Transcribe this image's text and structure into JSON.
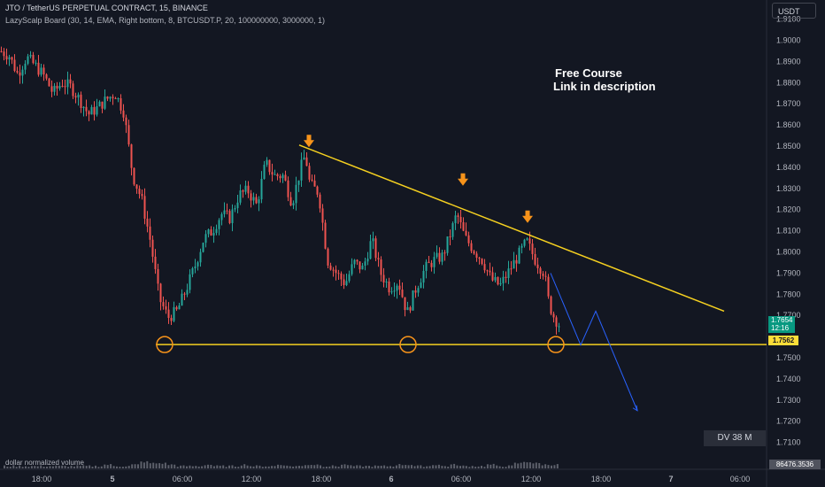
{
  "header": {
    "symbol_line": "JTO / TetherUS PERPETUAL CONTRACT, 15, BINANCE",
    "indicator_line": "LazyScalp Board (30, 14, EMA, Right bottom, 8, BTCUSDT.P, 20, 100000000, 3000000, 1)"
  },
  "currency": "USDT",
  "annotations": {
    "line1": "Free Course",
    "line2": "Link in description"
  },
  "dv_label": "DV 38 M",
  "volume_label": "dollar normalized volume",
  "volume_value": "86476.3536",
  "price_box": {
    "price": "1.7654",
    "countdown": "12:16"
  },
  "level_box": "1.7562",
  "colors": {
    "up": "#26a69a",
    "down": "#ef5350",
    "trendline": "#f5d020",
    "support": "#f5d020",
    "markers": "#f7931a",
    "projection": "#2962ff",
    "background": "#131722"
  },
  "chart_data": {
    "type": "candlestick",
    "y_ticks": [
      "1.9100",
      "1.9000",
      "1.8900",
      "1.8800",
      "1.8700",
      "1.8600",
      "1.8500",
      "1.8400",
      "1.8300",
      "1.8200",
      "1.8100",
      "1.8000",
      "1.7900",
      "1.7800",
      "1.7700",
      "1.7500",
      "1.7400",
      "1.7300",
      "1.7200",
      "1.7100"
    ],
    "ylim": [
      1.705,
      1.912
    ],
    "x_ticks": [
      "18:00",
      "5",
      "06:00",
      "12:00",
      "18:00",
      "6",
      "06:00",
      "12:00",
      "18:00",
      "7",
      "06:00"
    ],
    "price_path": [
      [
        0,
        1.895
      ],
      [
        10,
        1.893
      ],
      [
        20,
        1.884
      ],
      [
        30,
        1.892
      ],
      [
        40,
        1.888
      ],
      [
        50,
        1.883
      ],
      [
        60,
        1.875
      ],
      [
        70,
        1.88
      ],
      [
        80,
        1.878
      ],
      [
        90,
        1.872
      ],
      [
        100,
        1.865
      ],
      [
        110,
        1.868
      ],
      [
        120,
        1.872
      ],
      [
        130,
        1.875
      ],
      [
        140,
        1.866
      ],
      [
        150,
        1.836
      ],
      [
        160,
        1.825
      ],
      [
        170,
        1.805
      ],
      [
        180,
        1.778
      ],
      [
        190,
        1.769
      ],
      [
        200,
        1.772
      ],
      [
        210,
        1.782
      ],
      [
        220,
        1.793
      ],
      [
        230,
        1.806
      ],
      [
        240,
        1.81
      ],
      [
        250,
        1.818
      ],
      [
        260,
        1.816
      ],
      [
        270,
        1.827
      ],
      [
        280,
        1.829
      ],
      [
        290,
        1.822
      ],
      [
        300,
        1.842
      ],
      [
        310,
        1.836
      ],
      [
        320,
        1.836
      ],
      [
        330,
        1.823
      ],
      [
        340,
        1.84
      ],
      [
        345,
        1.846
      ],
      [
        350,
        1.832
      ],
      [
        360,
        1.828
      ],
      [
        370,
        1.796
      ],
      [
        380,
        1.79
      ],
      [
        390,
        1.785
      ],
      [
        400,
        1.795
      ],
      [
        410,
        1.792
      ],
      [
        420,
        1.806
      ],
      [
        430,
        1.79
      ],
      [
        440,
        1.783
      ],
      [
        450,
        1.786
      ],
      [
        460,
        1.771
      ],
      [
        470,
        1.783
      ],
      [
        480,
        1.792
      ],
      [
        490,
        1.796
      ],
      [
        500,
        1.798
      ],
      [
        510,
        1.81
      ],
      [
        516,
        1.818
      ],
      [
        525,
        1.807
      ],
      [
        535,
        1.801
      ],
      [
        545,
        1.796
      ],
      [
        555,
        1.787
      ],
      [
        565,
        1.784
      ],
      [
        575,
        1.791
      ],
      [
        585,
        1.798
      ],
      [
        595,
        1.805
      ],
      [
        605,
        1.796
      ],
      [
        615,
        1.79
      ],
      [
        620,
        1.776
      ],
      [
        625,
        1.77
      ],
      [
        632,
        1.7654
      ]
    ],
    "volume_path": [
      1,
      1,
      1,
      1,
      1,
      1,
      1,
      1,
      1,
      1,
      1,
      2,
      1,
      1,
      2,
      4,
      3,
      3,
      2,
      1,
      1,
      1,
      2,
      1,
      1,
      1,
      2,
      1,
      1,
      1,
      2,
      1,
      1,
      2,
      2,
      1,
      1,
      2,
      1,
      1,
      1,
      1,
      1,
      2,
      2,
      1,
      1,
      2,
      1,
      2,
      1,
      1,
      1,
      2,
      1,
      1,
      3,
      4,
      3,
      2,
      2
    ],
    "trendline": [
      [
        1.8505,
        338
      ],
      [
        1.772,
        818
      ]
    ],
    "support_level": 1.7562,
    "markers": [
      {
        "x": 349,
        "price": 1.852
      },
      {
        "x": 523,
        "price": 1.8338
      },
      {
        "x": 596,
        "price": 1.8162
      }
    ],
    "circles": [
      {
        "x": 186,
        "price": 1.7562
      },
      {
        "x": 461,
        "price": 1.7562
      },
      {
        "x": 628,
        "price": 1.7562
      }
    ],
    "projection": [
      [
        622,
        1.79
      ],
      [
        656,
        1.756
      ],
      [
        673,
        1.772
      ],
      [
        720,
        1.725
      ]
    ]
  }
}
